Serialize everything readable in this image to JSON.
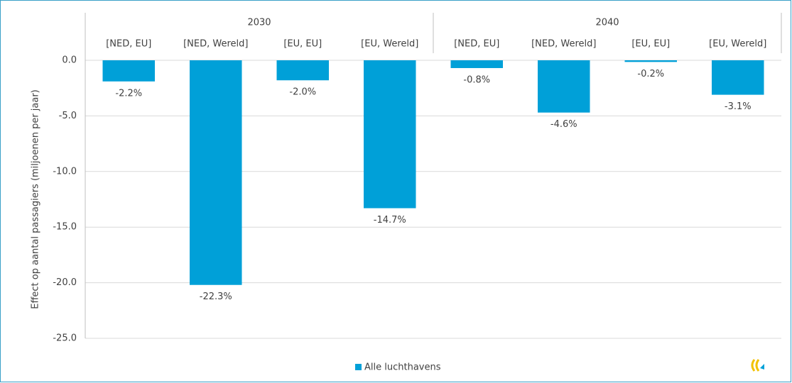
{
  "chart_data": {
    "type": "bar",
    "y_label": "Effect op aantal passagiers (miljoenen per jaar)",
    "groups": [
      "2030",
      "2040"
    ],
    "categories": [
      "[NED, EU]",
      "[NED, Wereld]",
      "[EU, EU]",
      "[EU, Wereld]",
      "[NED, EU]",
      "[NED, Wereld]",
      "[EU, EU]",
      "[EU, Wereld]"
    ],
    "series": [
      {
        "name": "Alle luchthavens",
        "color": "#00a0d8",
        "values": [
          -1.9,
          -20.2,
          -1.8,
          -13.3,
          -0.7,
          -4.7,
          -0.15,
          -3.1
        ],
        "data_labels": [
          "-2.2%",
          "-22.3%",
          "-2.0%",
          "-14.7%",
          "-0.8%",
          "-4.6%",
          "-0.2%",
          "-3.1%"
        ]
      }
    ],
    "ylim": [
      -25,
      0
    ],
    "yticks": [
      {
        "value": 0,
        "label": "0.0"
      },
      {
        "value": -5,
        "label": "-5.0"
      },
      {
        "value": -10,
        "label": "-10.0"
      },
      {
        "value": -15,
        "label": "-15.0"
      },
      {
        "value": -20,
        "label": "-20.0"
      },
      {
        "value": -25,
        "label": "-25.0"
      }
    ],
    "grid": true,
    "legend": "bottom"
  }
}
